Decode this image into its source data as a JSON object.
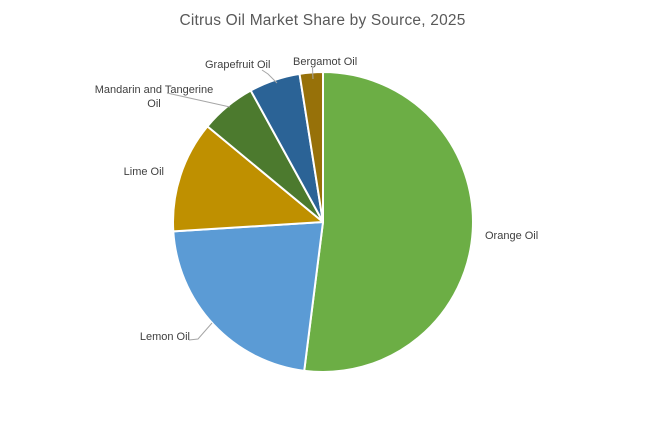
{
  "title": "Citrus Oil Market Share by Source, 2025",
  "chart_data": {
    "type": "pie",
    "title": "Citrus Oil Market Share by Source, 2025",
    "unit": "percent of market",
    "direction": "clockwise",
    "start_angle_deg": 0,
    "legend": "none",
    "labels_position": "outside",
    "slices": [
      {
        "label": "Orange Oil",
        "value": 52,
        "color": "#6CAE45"
      },
      {
        "label": "Lemon Oil",
        "value": 22,
        "color": "#5B9BD5"
      },
      {
        "label": "Lime Oil",
        "value": 12,
        "color": "#BF9000"
      },
      {
        "label": "Mandarin and Tangerine Oil",
        "value": 6,
        "color": "#4C7A2E"
      },
      {
        "label": "Grapefruit Oil",
        "value": 5.5,
        "color": "#2B6396"
      },
      {
        "label": "Bergamot Oil",
        "value": 2.5,
        "color": "#977109"
      }
    ]
  },
  "colors": {
    "background": "#FFFFFF",
    "title_text": "#595959",
    "label_text": "#404040",
    "leader_line": "#A6A6A6",
    "slice_border": "#FFFFFF"
  }
}
